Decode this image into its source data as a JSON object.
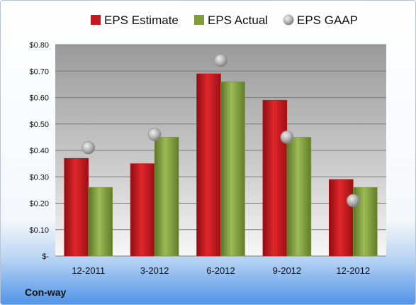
{
  "colors": {
    "estimate": "#c4181c",
    "actual": "#7f9e3a",
    "gaap": "#a7a7a7"
  },
  "footer": {
    "company": "Con-way"
  },
  "chart_data": {
    "type": "bar",
    "title": "",
    "xlabel": "",
    "ylabel": "",
    "categories": [
      "12-2011",
      "3-2012",
      "6-2012",
      "9-2012",
      "12-2012"
    ],
    "series": [
      {
        "name": "EPS Estimate",
        "kind": "bar",
        "values": [
          0.37,
          0.35,
          0.69,
          0.59,
          0.29
        ]
      },
      {
        "name": "EPS Actual",
        "kind": "bar",
        "values": [
          0.26,
          0.45,
          0.66,
          0.45,
          0.26
        ]
      },
      {
        "name": "EPS GAAP",
        "kind": "marker",
        "values": [
          0.41,
          0.46,
          0.74,
          0.45,
          0.21
        ]
      }
    ],
    "ylim": [
      0,
      0.8
    ],
    "yticks": [
      0,
      0.1,
      0.2,
      0.3,
      0.4,
      0.5,
      0.6,
      0.7,
      0.8
    ],
    "ytick_labels": [
      "$-",
      "$0.10",
      "$0.20",
      "$0.30",
      "$0.40",
      "$0.50",
      "$0.60",
      "$0.70",
      "$0.80"
    ],
    "grid": true,
    "legend_position": "top"
  }
}
